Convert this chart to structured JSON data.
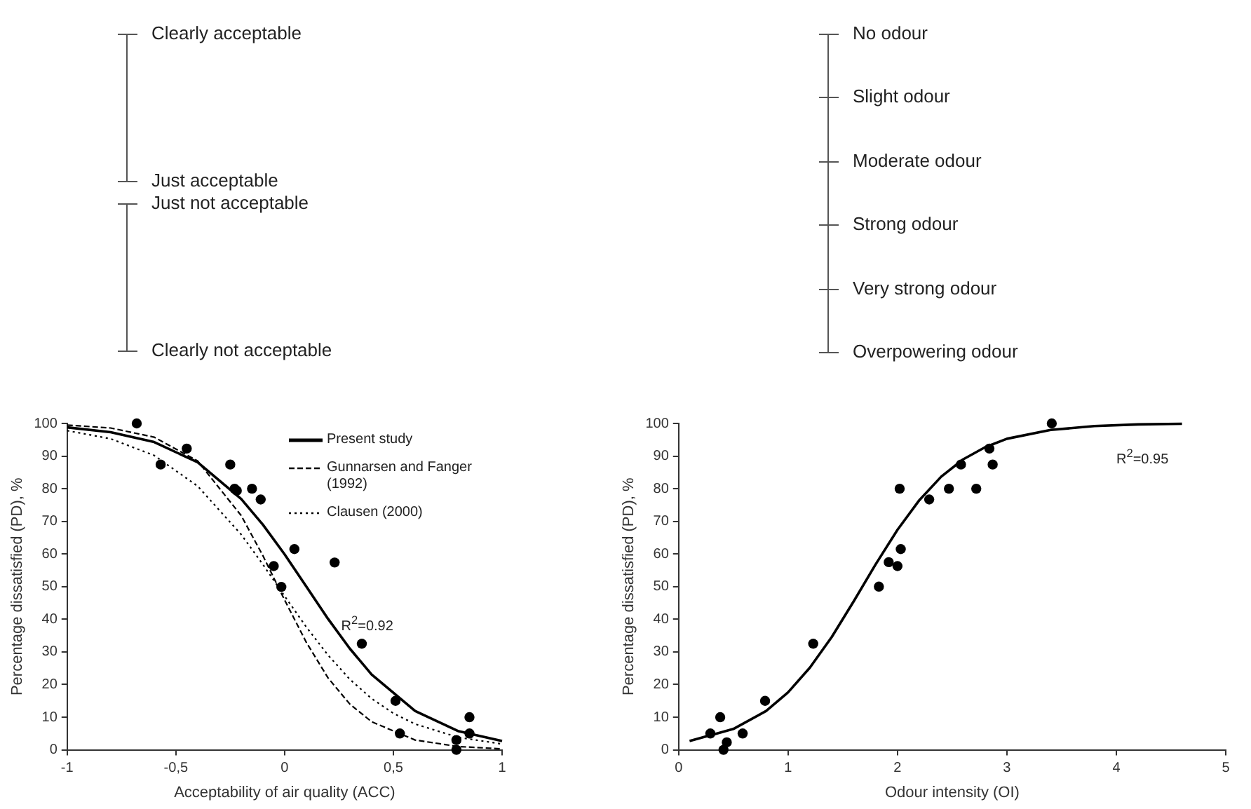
{
  "chart_data": [
    {
      "type": "other",
      "annotations": [
        "Clearly acceptable",
        "Just acceptable",
        "Just not acceptable",
        "Clearly not acceptable"
      ]
    },
    {
      "type": "other",
      "annotations": [
        "No odour",
        "Slight odour",
        "Moderate odour",
        "Strong odour",
        "Very strong odour",
        "Overpowering odour"
      ]
    },
    {
      "type": "scatter",
      "xlabel": "Acceptability of air quality (ACC)",
      "ylabel": "Percentage dissatisfied (PD), %",
      "xlim": [
        -1,
        1
      ],
      "xticks": [
        {
          "value": -1,
          "label": "-1"
        },
        {
          "value": -0.5,
          "label": "-0,5"
        },
        0,
        {
          "value": 0.5,
          "label": "0,5"
        },
        1
      ],
      "ylim": [
        0,
        100
      ],
      "yticks": [
        0,
        10,
        20,
        30,
        40,
        50,
        60,
        70,
        80,
        90,
        100
      ],
      "grid": false,
      "legend": "top right",
      "annotations": [
        "R$^{2}$=0.92"
      ],
      "series": [
        {
          "type": "scatter",
          "color": "#000000",
          "marker": "circle",
          "x": [
            -0.68,
            -0.57,
            -0.45,
            -0.25,
            -0.23,
            -0.22,
            -0.15,
            -0.11,
            -0.05,
            -0.015,
            0.045,
            0.23,
            0.355,
            0.51,
            0.53,
            0.79,
            0.79,
            0.85,
            0.85
          ],
          "values": [
            100,
            87.4,
            92.3,
            87.4,
            80,
            79.4,
            80,
            76.7,
            56.3,
            49.9,
            61.5,
            57.4,
            32.5,
            15,
            5,
            3,
            0,
            10,
            5
          ]
        },
        {
          "type": "line",
          "name": "Present study",
          "color": "#000000",
          "line_style": "solid",
          "marker": "none",
          "x": [
            -1,
            -0.8,
            -0.6,
            -0.4,
            -0.2,
            -0.1,
            0,
            0.1,
            0.2,
            0.3,
            0.4,
            0.6,
            0.8,
            1
          ],
          "values": [
            98.8,
            97.3,
            94.3,
            88.1,
            76.9,
            69.0,
            59.9,
            50,
            40.1,
            31.0,
            23.1,
            11.9,
            5.7,
            2.7
          ]
        },
        {
          "type": "line",
          "name": "Gunnarsen and Fanger (1992)",
          "color": "#000000",
          "line_style": "dashed",
          "marker": "none",
          "x": [
            -1,
            -0.8,
            -0.6,
            -0.4,
            -0.2,
            -0.1,
            0,
            0.1,
            0.2,
            0.3,
            0.4,
            0.6,
            0.8,
            1
          ],
          "values": [
            99.5,
            98.6,
            95.8,
            88.5,
            71.8,
            59.5,
            45.9,
            32.9,
            22.0,
            14.0,
            8.6,
            3.0,
            1.0,
            0.3
          ]
        },
        {
          "type": "line",
          "name": "Clausen (2000)",
          "color": "#000000",
          "line_style": "dotted",
          "marker": "none",
          "x": [
            -1,
            -0.8,
            -0.6,
            -0.4,
            -0.2,
            -0.1,
            0,
            0.1,
            0.2,
            0.3,
            0.4,
            0.5,
            0.6,
            0.8,
            1
          ],
          "values": [
            97.8,
            95.3,
            90.2,
            80.8,
            66.0,
            56.8,
            47.1,
            37.6,
            29.0,
            21.6,
            15.7,
            11.2,
            7.9,
            3.8,
            1.8
          ]
        }
      ]
    },
    {
      "type": "scatter",
      "xlabel": "Odour intensity (OI)",
      "ylabel": "Percentage dissatisfied (PD), %",
      "xlim": [
        0,
        5
      ],
      "xticks": [
        0,
        1,
        2,
        3,
        4,
        5
      ],
      "ylim": [
        0,
        100
      ],
      "yticks": [
        0,
        10,
        20,
        30,
        40,
        50,
        60,
        70,
        80,
        90,
        100
      ],
      "grid": false,
      "annotations": [
        "R$^{2}$=0.95"
      ],
      "series": [
        {
          "type": "scatter",
          "color": "#000000",
          "marker": "circle",
          "x": [
            0.29,
            0.38,
            0.41,
            0.44,
            0.585,
            0.79,
            1.23,
            1.83,
            1.92,
            2.0,
            2.02,
            2.03,
            2.29,
            2.47,
            2.58,
            2.72,
            2.84,
            2.87,
            3.41
          ],
          "values": [
            5,
            10,
            0,
            2.3,
            5,
            15,
            32.5,
            50,
            57.5,
            56.3,
            80,
            61.5,
            76.7,
            80,
            87.4,
            80,
            92.3,
            87.4,
            100
          ]
        },
        {
          "type": "line",
          "color": "#000000",
          "line_style": "solid",
          "marker": "none",
          "x": [
            0.1,
            0.5,
            0.8,
            1.0,
            1.2,
            1.4,
            1.6,
            1.8,
            2.0,
            2.2,
            2.4,
            2.6,
            2.8,
            3.0,
            3.4,
            3.8,
            4.2,
            4.6
          ],
          "values": [
            2.7,
            6.4,
            11.9,
            17.6,
            25.2,
            34.6,
            45.5,
            56.8,
            67.4,
            76.5,
            83.7,
            89.0,
            92.7,
            95.3,
            98.0,
            99.2,
            99.7,
            99.9
          ]
        }
      ]
    }
  ]
}
